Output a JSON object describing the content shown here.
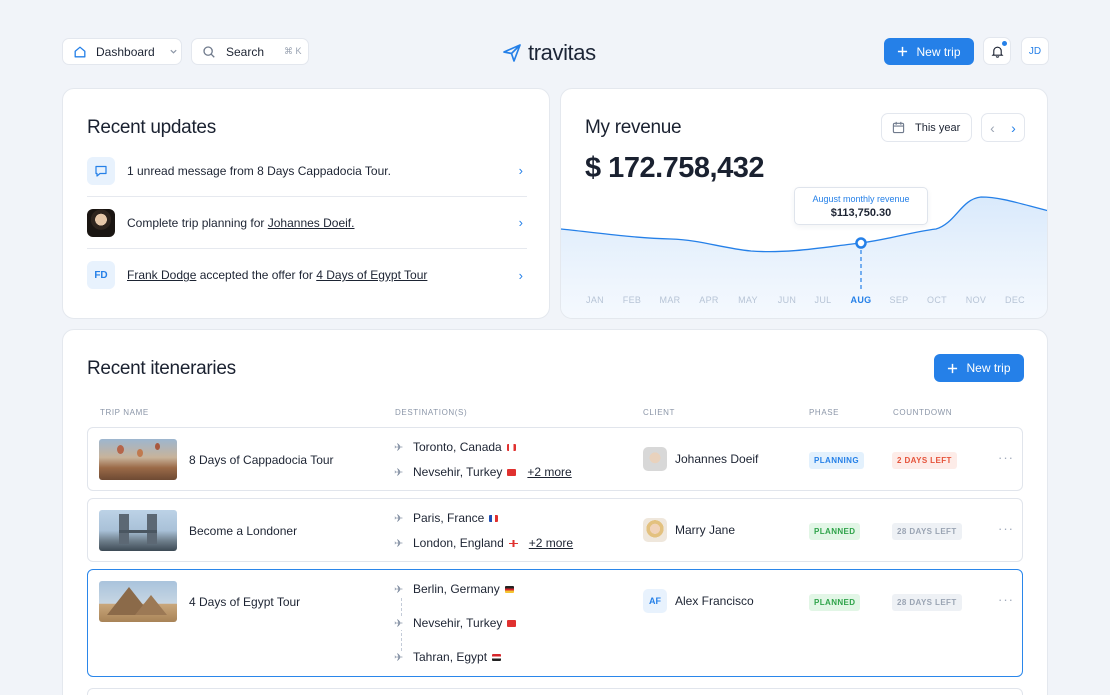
{
  "topbar": {
    "dashboard_label": "Dashboard",
    "search_label": "Search",
    "search_shortcut": "⌘ K",
    "logo_text": "travitas",
    "new_trip_label": "New trip",
    "avatar_initials": "JD"
  },
  "updates": {
    "title": "Recent updates",
    "items": [
      {
        "text": "1 unread message from 8 Days Cappadocia Tour."
      },
      {
        "prefix": "Complete trip planning for ",
        "link": "Johannes Doeif."
      },
      {
        "initials": "FD",
        "person": "Frank Dodge",
        "middle": " accepted the offer for ",
        "link": "4 Days of Egypt Tour"
      }
    ]
  },
  "revenue": {
    "title": "My revenue",
    "period_label": "This year",
    "amount": "$ 172.758,432",
    "tooltip_title": "August monthly revenue",
    "tooltip_value": "$113,750.30",
    "months": [
      "JAN",
      "FEB",
      "MAR",
      "APR",
      "MAY",
      "JUN",
      "JUL",
      "AUG",
      "SEP",
      "OCT",
      "NOV",
      "DEC"
    ],
    "active_month": "AUG",
    "accent": "#2580e8"
  },
  "itineraries": {
    "title": "Recent iteneraries",
    "new_trip_label": "New trip",
    "columns": [
      "TRIP NAME",
      "DESTINATION(S)",
      "CLIENT",
      "PHASE",
      "COUNTDOWN"
    ],
    "rows": [
      {
        "name": "8 Days of Cappadocia Tour",
        "destinations": [
          "Toronto, Canada",
          "Nevsehir, Turkey"
        ],
        "more": "+2 more",
        "client": "Johannes Doeif",
        "phase": "PLANNING",
        "countdown": "2 DAYS LEFT"
      },
      {
        "name": "Become a Londoner",
        "destinations": [
          "Paris, France",
          "London, England"
        ],
        "more": "+2 more",
        "client": "Marry Jane",
        "phase": "PLANNED",
        "countdown": "28 DAYS LEFT"
      },
      {
        "name": "4 Days of Egypt Tour",
        "destinations": [
          "Berlin, Germany",
          "Nevsehir, Turkey",
          "Tahran, Egypt"
        ],
        "client": "Alex Francisco",
        "client_initials": "AF",
        "phase": "PLANNED",
        "countdown": "28 DAYS LEFT"
      }
    ]
  }
}
